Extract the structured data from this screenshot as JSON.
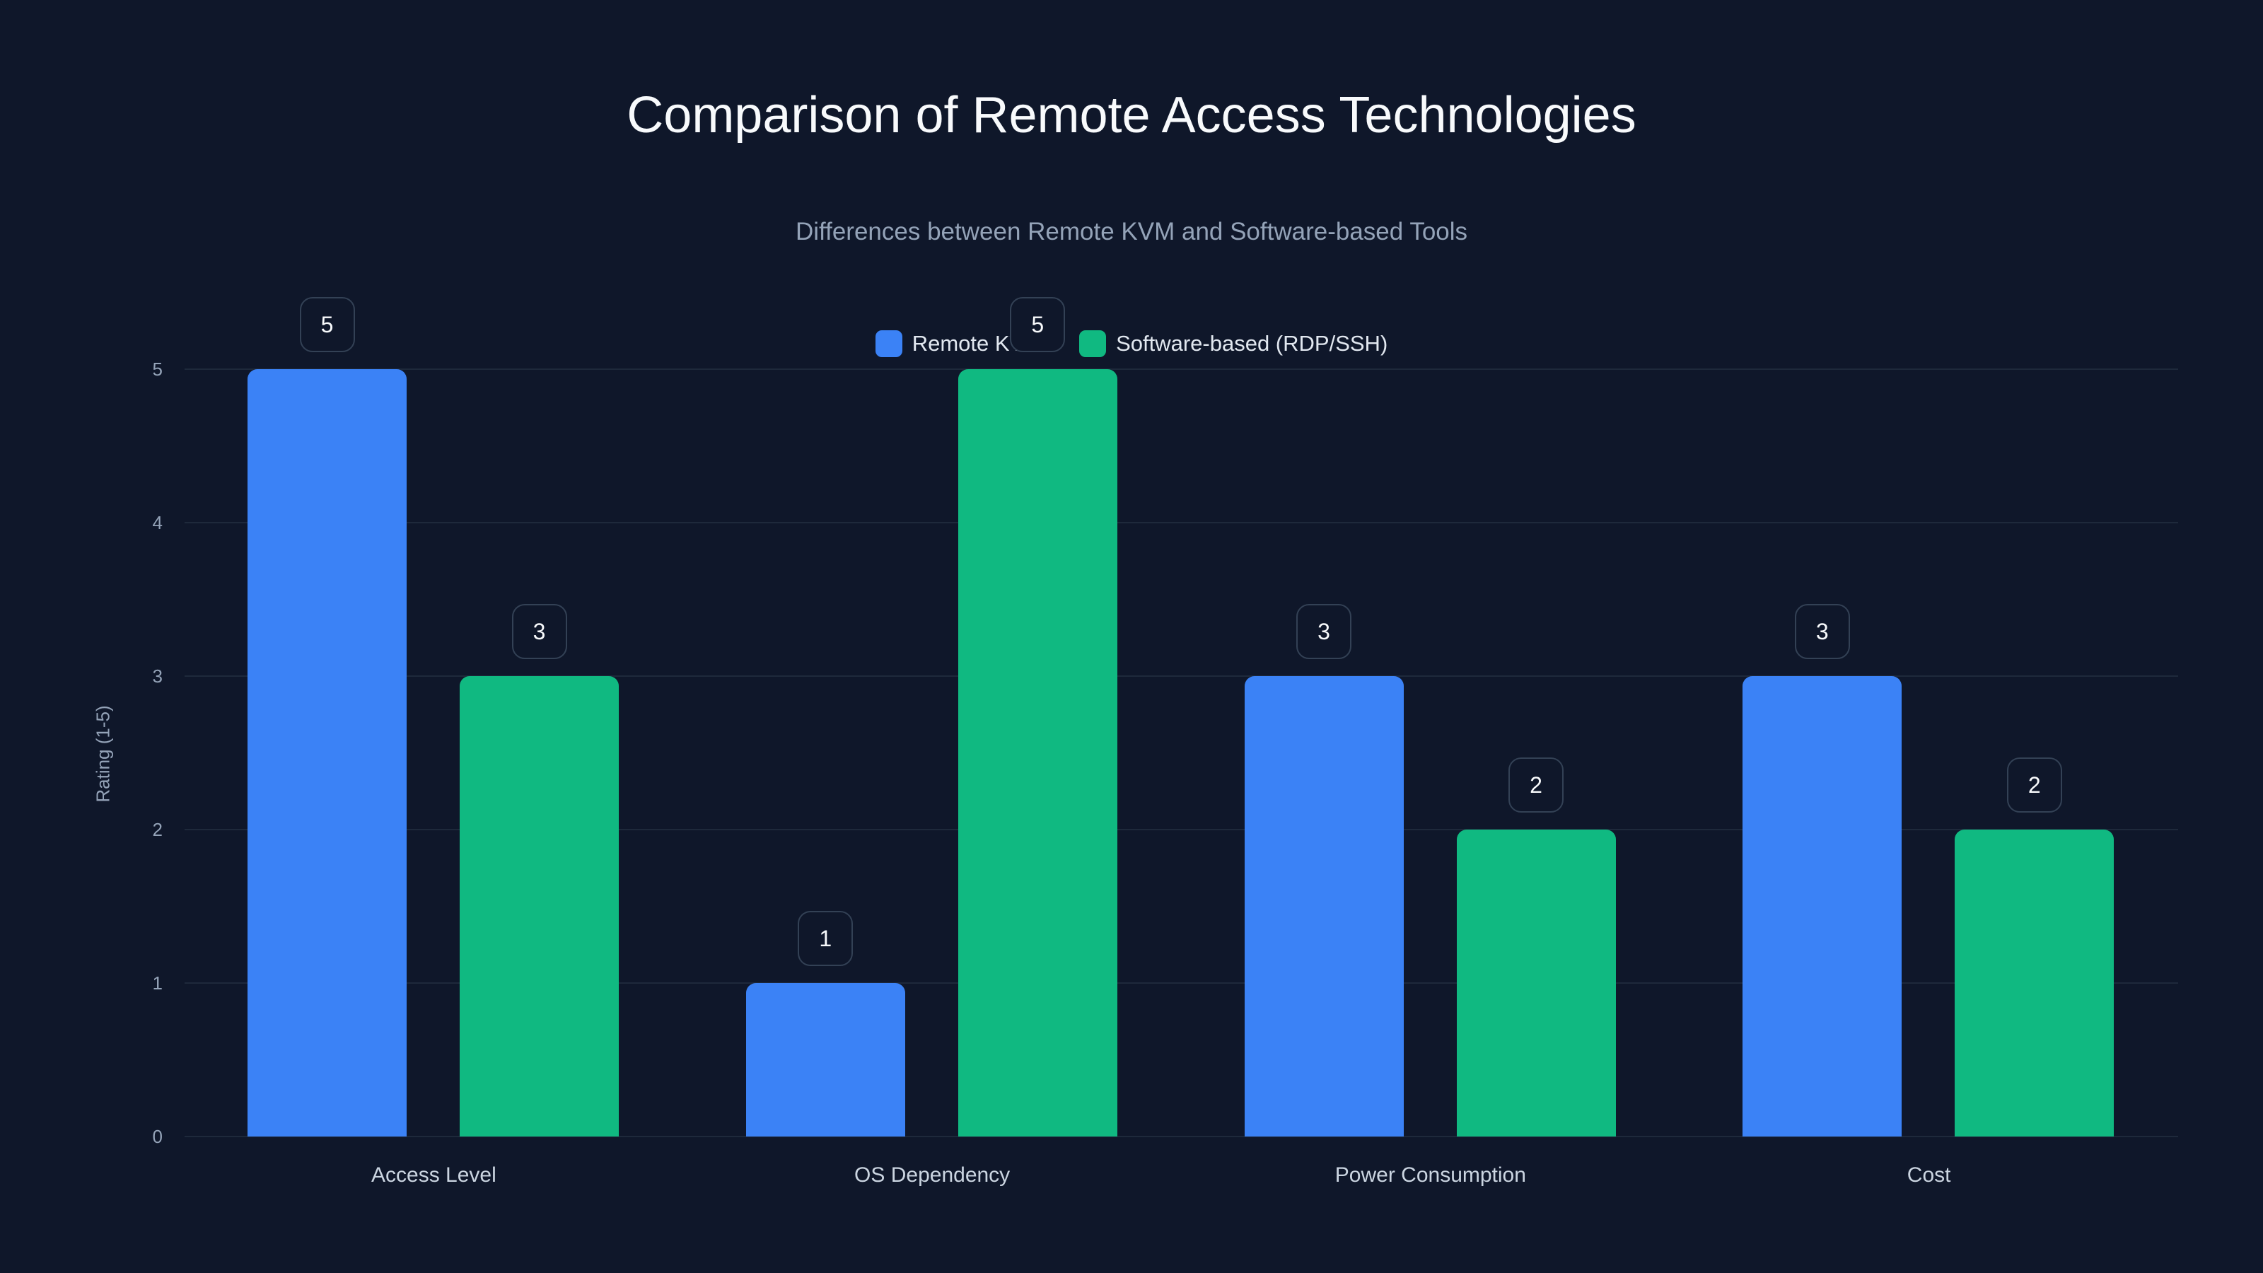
{
  "header": {
    "title": "Comparison of Remote Access Technologies",
    "subtitle": "Differences between Remote KVM and Software-based Tools"
  },
  "legend": [
    {
      "label": "Remote KVM",
      "color": "#3b82f6"
    },
    {
      "label": "Software-based (RDP/SSH)",
      "color": "#10b981"
    }
  ],
  "axes": {
    "ylabel": "Rating (1-5)",
    "yticks": [
      "0",
      "1",
      "2",
      "3",
      "4",
      "5"
    ]
  },
  "chart_data": {
    "type": "bar",
    "title": "Comparison of Remote Access Technologies",
    "subtitle": "Differences between Remote KVM and Software-based Tools",
    "categories": [
      "Access Level",
      "OS Dependency",
      "Power Consumption",
      "Cost"
    ],
    "series": [
      {
        "name": "Remote KVM",
        "color": "#3b82f6",
        "values": [
          5,
          1,
          3,
          3
        ]
      },
      {
        "name": "Software-based (RDP/SSH)",
        "color": "#10b981",
        "values": [
          3,
          5,
          2,
          2
        ]
      }
    ],
    "xlabel": "",
    "ylabel": "Rating (1-5)",
    "ylim": [
      0,
      5
    ],
    "yticks": [
      0,
      1,
      2,
      3,
      4,
      5
    ],
    "grid": true,
    "legend_position": "top-center",
    "data_labels": true
  }
}
